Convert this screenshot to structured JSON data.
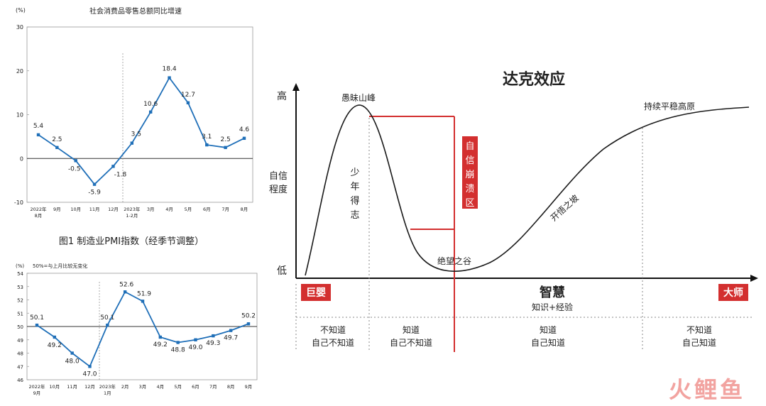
{
  "chart_data": [
    {
      "type": "line",
      "title": "社会消费品零售总额同比增速",
      "unit": "(%)",
      "ylim": [
        -10,
        30
      ],
      "yticks": [
        -10,
        0,
        10,
        20,
        30
      ],
      "categories": [
        [
          "2022年",
          "8月"
        ],
        [
          "9月"
        ],
        [
          "10月"
        ],
        [
          "11月"
        ],
        [
          "12月"
        ],
        [
          "2023年",
          "1-2月"
        ],
        [
          "3月"
        ],
        [
          "4月"
        ],
        [
          "5月"
        ],
        [
          "6月"
        ],
        [
          "7月"
        ],
        [
          "8月"
        ]
      ],
      "values": [
        5.4,
        2.5,
        -0.5,
        -5.9,
        -1.8,
        3.5,
        10.6,
        18.4,
        12.7,
        3.1,
        2.5,
        4.6
      ],
      "labels": [
        "5.4",
        "2.5",
        "-0.5",
        "-5.9",
        "-1.8",
        "3.5",
        "10.6",
        "18.4",
        "12.7",
        "3.1",
        "2.5",
        "4.6"
      ],
      "color": "#1f6fb8"
    },
    {
      "type": "line",
      "title": "图1 制造业PMI指数（经季节调整）",
      "unit": "(%)",
      "note": "50%=与上月比较无变化",
      "ylim": [
        46,
        54
      ],
      "yticks": [
        46,
        47,
        48,
        49,
        50,
        51,
        52,
        53,
        54
      ],
      "reference": 50,
      "categories": [
        [
          "2022年",
          "9月"
        ],
        [
          "10月"
        ],
        [
          "11月"
        ],
        [
          "12月"
        ],
        [
          "2023年",
          "1月"
        ],
        [
          "2月"
        ],
        [
          "3月"
        ],
        [
          "4月"
        ],
        [
          "5月"
        ],
        [
          "6月"
        ],
        [
          "7月"
        ],
        [
          "8月"
        ],
        [
          "9月"
        ]
      ],
      "values": [
        50.1,
        49.2,
        48.0,
        47.0,
        50.1,
        52.6,
        51.9,
        49.2,
        48.8,
        49.0,
        49.3,
        49.7,
        50.2
      ],
      "labels": [
        "50.1",
        "49.2",
        "48.0",
        "47.0",
        "50.1",
        "52.6",
        "51.9",
        "49.2",
        "48.8",
        "49.0",
        "49.3",
        "49.7",
        "50.2"
      ],
      "color": "#1f6fb8"
    },
    {
      "type": "diagram",
      "title": "达克效应",
      "ylabel": [
        "自信",
        "程度"
      ],
      "y_high": "高",
      "y_low": "低",
      "xlabel": "智慧",
      "xlabel_sub": "知识+经验",
      "x_left_tag": "巨婴",
      "x_right_tag": "大师",
      "peak_label": "愚昧山峰",
      "valley_label": "绝望之谷",
      "slope_label": "开悟之坡",
      "plateau_label": "持续平稳高原",
      "young_label": "少年得志",
      "collapse_label": "自信崩溃区",
      "stages": [
        [
          "不知道",
          "自己不知道"
        ],
        [
          "知道",
          "自己不知道"
        ],
        [
          "知道",
          "自己知道"
        ],
        [
          "不知道",
          "自己知道"
        ]
      ],
      "accent_color": "#d32f2f"
    }
  ],
  "watermark": "火鲤鱼"
}
